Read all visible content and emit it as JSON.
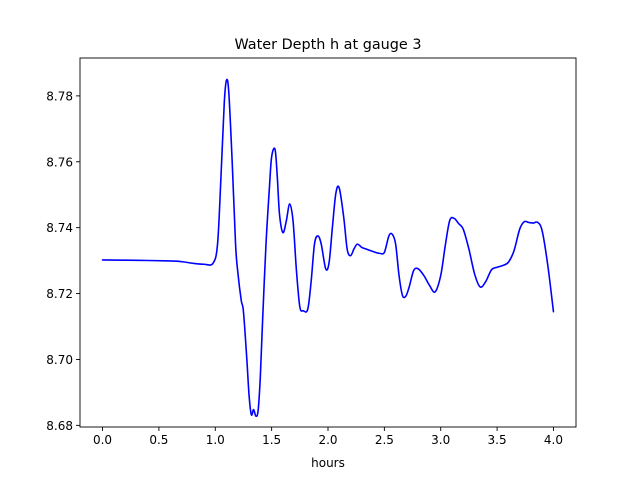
{
  "chart_data": {
    "type": "line",
    "title": "Water Depth h at gauge 3",
    "xlabel": "hours",
    "ylabel": "",
    "xlim": [
      -0.2,
      4.2
    ],
    "ylim": [
      8.6795,
      8.7915
    ],
    "xticks": [
      0.0,
      0.5,
      1.0,
      1.5,
      2.0,
      2.5,
      3.0,
      3.5,
      4.0
    ],
    "xtick_labels": [
      "0.0",
      "0.5",
      "1.0",
      "1.5",
      "2.0",
      "2.5",
      "3.0",
      "3.5",
      "4.0"
    ],
    "yticks": [
      8.68,
      8.7,
      8.72,
      8.74,
      8.76,
      8.78
    ],
    "ytick_labels": [
      "8.68",
      "8.70",
      "8.72",
      "8.74",
      "8.76",
      "8.78"
    ],
    "grid": false,
    "series": [
      {
        "color": "#0000ff",
        "x": [
          0.0,
          0.3,
          0.6,
          0.7,
          0.8,
          0.9,
          0.98,
          1.02,
          1.05,
          1.08,
          1.1,
          1.12,
          1.15,
          1.18,
          1.2,
          1.23,
          1.25,
          1.28,
          1.3,
          1.32,
          1.34,
          1.36,
          1.38,
          1.4,
          1.42,
          1.45,
          1.48,
          1.5,
          1.53,
          1.55,
          1.57,
          1.6,
          1.63,
          1.66,
          1.69,
          1.72,
          1.75,
          1.78,
          1.82,
          1.85,
          1.88,
          1.91,
          1.94,
          1.98,
          2.01,
          2.04,
          2.07,
          2.1,
          2.14,
          2.17,
          2.2,
          2.23,
          2.26,
          2.3,
          2.34,
          2.38,
          2.42,
          2.46,
          2.5,
          2.54,
          2.57,
          2.6,
          2.63,
          2.66,
          2.69,
          2.72,
          2.76,
          2.8,
          2.85,
          2.9,
          2.95,
          3.0,
          3.04,
          3.08,
          3.12,
          3.16,
          3.2,
          3.25,
          3.3,
          3.35,
          3.4,
          3.45,
          3.5,
          3.55,
          3.6,
          3.65,
          3.7,
          3.74,
          3.78,
          3.82,
          3.86,
          3.9,
          3.95,
          4.0
        ],
        "y": [
          8.7302,
          8.7301,
          8.7299,
          8.7297,
          8.7292,
          8.7289,
          8.7292,
          8.735,
          8.755,
          8.778,
          8.7848,
          8.781,
          8.76,
          8.735,
          8.7265,
          8.718,
          8.7145,
          8.7,
          8.689,
          8.6832,
          8.6848,
          8.6828,
          8.6845,
          8.695,
          8.712,
          8.735,
          8.752,
          8.7615,
          8.7638,
          8.7555,
          8.744,
          8.7385,
          8.742,
          8.7472,
          8.742,
          8.727,
          8.716,
          8.7148,
          8.7152,
          8.7235,
          8.735,
          8.7375,
          8.735,
          8.7275,
          8.7295,
          8.7405,
          8.7505,
          8.752,
          8.743,
          8.7335,
          8.7315,
          8.7335,
          8.735,
          8.734,
          8.7335,
          8.733,
          8.7325,
          8.7322,
          8.7325,
          8.7375,
          8.738,
          8.735,
          8.7255,
          8.7195,
          8.7192,
          8.722,
          8.727,
          8.7275,
          8.7255,
          8.7225,
          8.7205,
          8.7255,
          8.7345,
          8.7422,
          8.7428,
          8.7412,
          8.7395,
          8.7335,
          8.726,
          8.722,
          8.7237,
          8.7272,
          8.728,
          8.7285,
          8.7295,
          8.733,
          8.7395,
          8.7418,
          8.7416,
          8.7414,
          8.7416,
          8.739,
          8.7285,
          8.7145
        ]
      }
    ]
  }
}
